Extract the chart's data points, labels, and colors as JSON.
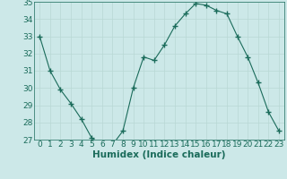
{
  "x": [
    0,
    1,
    2,
    3,
    4,
    5,
    6,
    7,
    8,
    9,
    10,
    11,
    12,
    13,
    14,
    15,
    16,
    17,
    18,
    19,
    20,
    21,
    22,
    23
  ],
  "y": [
    33.0,
    31.0,
    29.9,
    29.1,
    28.2,
    27.1,
    26.7,
    26.7,
    27.5,
    30.0,
    31.8,
    31.6,
    32.5,
    33.6,
    34.3,
    34.9,
    34.8,
    34.5,
    34.3,
    33.0,
    31.8,
    30.3,
    28.6,
    27.5
  ],
  "line_color": "#1a6b5a",
  "marker": "+",
  "marker_size": 4,
  "bg_color": "#cce8e8",
  "grid_color": "#b8d8d4",
  "axis_color": "#1a6b5a",
  "xlabel": "Humidex (Indice chaleur)",
  "ylim": [
    27,
    35
  ],
  "xlim": [
    -0.5,
    23.5
  ],
  "yticks": [
    27,
    28,
    29,
    30,
    31,
    32,
    33,
    34,
    35
  ],
  "xticks": [
    0,
    1,
    2,
    3,
    4,
    5,
    6,
    7,
    8,
    9,
    10,
    11,
    12,
    13,
    14,
    15,
    16,
    17,
    18,
    19,
    20,
    21,
    22,
    23
  ],
  "font_color": "#1a6b5a",
  "xlabel_fontsize": 7.5,
  "tick_fontsize": 6.5
}
